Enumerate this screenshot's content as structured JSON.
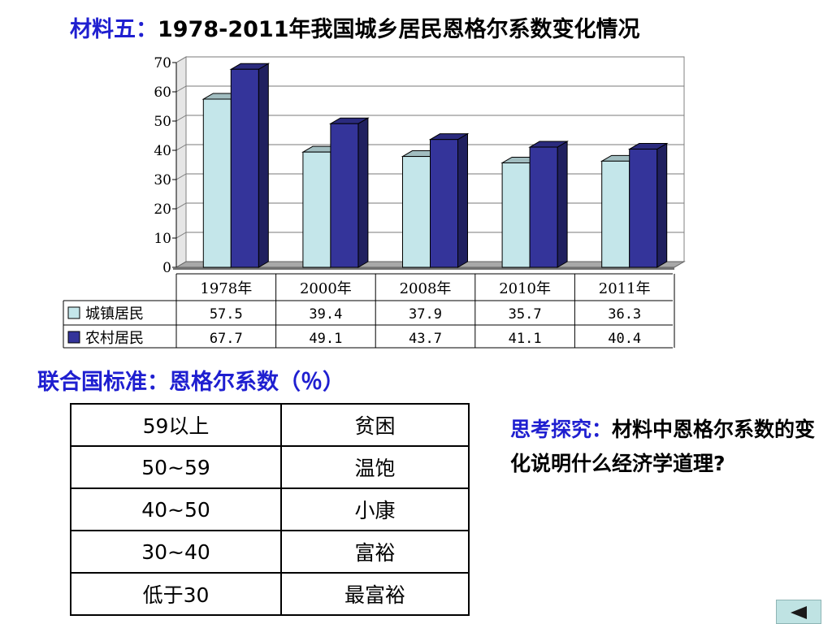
{
  "title": {
    "lead": "材料五：",
    "text": "1978-2011年我国城乡居民恩格尔系数变化情况"
  },
  "chart_data": {
    "type": "bar",
    "categories": [
      "1978年",
      "2000年",
      "2008年",
      "2010年",
      "2011年"
    ],
    "series": [
      {
        "name": "城镇居民",
        "values": [
          57.5,
          39.4,
          37.9,
          35.7,
          36.3
        ],
        "display": [
          "57.5",
          "39.4",
          "37.9",
          "35.7",
          "36.3"
        ],
        "color": "#c4e6ea"
      },
      {
        "name": "农村居民",
        "values": [
          67.7,
          49.1,
          43.7,
          41.1,
          40.4
        ],
        "display": [
          "67.7",
          "49.1",
          "43.7",
          "41.1",
          "40.4"
        ],
        "color": "#34349a"
      }
    ],
    "ylim": [
      0,
      70
    ],
    "yticks": [
      0,
      10,
      20,
      30,
      40,
      50,
      60,
      70
    ],
    "grid": true,
    "legend": "data-table"
  },
  "standard": {
    "title": "联合国标准：恩格尔系数（％）",
    "rows": [
      {
        "range": "59以上",
        "level": "贫困"
      },
      {
        "range": "50~59",
        "level": "温饱"
      },
      {
        "range": "40~50",
        "level": "小康"
      },
      {
        "range": "30~40",
        "level": "富裕"
      },
      {
        "range": "低于30",
        "level": "最富裕"
      }
    ]
  },
  "think": {
    "lead": "思考探究：",
    "text": "材料中恩格尔系数的变化说明什么经济学道理?"
  },
  "nav": {
    "back_icon": "triangle-left-icon"
  }
}
